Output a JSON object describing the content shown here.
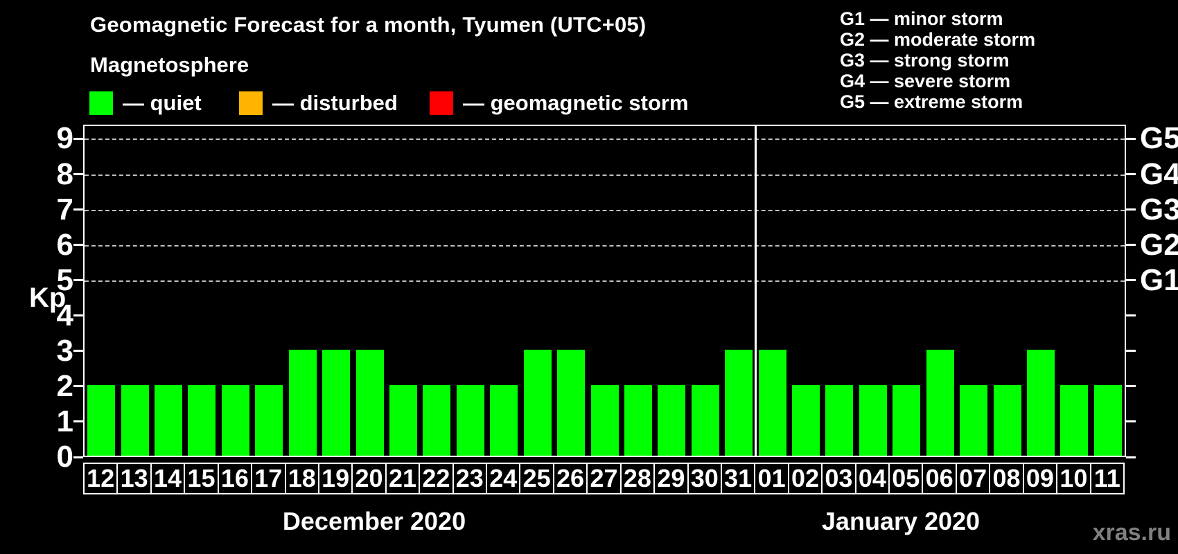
{
  "title": "Geomagnetic Forecast for a month, Tyumen (UTC+05)",
  "subtitle": "Magnetosphere",
  "magnetosphere_legend": {
    "items": [
      {
        "name": "quiet",
        "label": "— quiet",
        "color": "#00ff00"
      },
      {
        "name": "disturbed",
        "label": "— disturbed",
        "color": "#ffb400"
      },
      {
        "name": "geomagnetic-storm",
        "label": "— geomagnetic storm",
        "color": "#ff0000"
      }
    ]
  },
  "g_scale_legend": [
    "G1 — minor storm",
    "G2 — moderate storm",
    "G3 — strong storm",
    "G4 — severe storm",
    "G5 — extreme storm"
  ],
  "watermark": "xras.ru",
  "chart_data": {
    "type": "bar",
    "title": "Geomagnetic Forecast for a month, Tyumen (UTC+05)",
    "ylabel": "Kp",
    "ylim": [
      0,
      9
    ],
    "yticks": [
      0,
      1,
      2,
      3,
      4,
      5,
      6,
      7,
      8,
      9
    ],
    "grid": "dashed horizontal gridlines at Kp 5 to 9",
    "legend_position": "top",
    "bar_color": "#00ff00",
    "right_axis_labels": [
      {
        "value": 5,
        "label": "G1"
      },
      {
        "value": 6,
        "label": "G2"
      },
      {
        "value": 7,
        "label": "G3"
      },
      {
        "value": 8,
        "label": "G4"
      },
      {
        "value": 9,
        "label": "G5"
      }
    ],
    "categories": [
      "12",
      "13",
      "14",
      "15",
      "16",
      "17",
      "18",
      "19",
      "20",
      "21",
      "22",
      "23",
      "24",
      "25",
      "26",
      "27",
      "28",
      "29",
      "30",
      "31",
      "01",
      "02",
      "03",
      "04",
      "05",
      "06",
      "07",
      "08",
      "09",
      "10",
      "11"
    ],
    "values": [
      2,
      2,
      2,
      2,
      2,
      2,
      3,
      3,
      3,
      2,
      2,
      2,
      2,
      3,
      3,
      2,
      2,
      2,
      2,
      3,
      3,
      2,
      2,
      2,
      2,
      3,
      2,
      2,
      3,
      2,
      2
    ],
    "months": [
      {
        "label": "December 2020",
        "days": 20
      },
      {
        "label": "January 2020",
        "days": 11
      }
    ]
  }
}
